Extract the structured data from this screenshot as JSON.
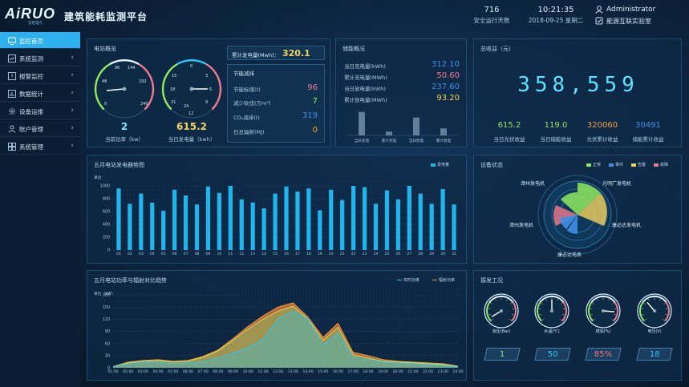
{
  "colors": {
    "accent": "#2fb0ee",
    "cyan": "#29c8f2",
    "yellow": "#f3d35c",
    "green": "#8fea5f",
    "orange": "#f2a03c",
    "red": "#e8596b",
    "blue": "#3f8fe6",
    "pink": "#f07a8c"
  },
  "header": {
    "logo_text": "AiRUO",
    "logo_sub": "艾若电气",
    "title": "建筑能耗监测平台",
    "safe_days_value": "716",
    "safe_days_label": "安全运行天数",
    "time": "10:21:35",
    "date": "2018-09-25 星期二",
    "user_name": "Administrator",
    "company": "能源互联实验室",
    "icons": {
      "user": "user-icon",
      "badge": "shield-check-icon"
    }
  },
  "sidebar": {
    "items": [
      {
        "label": "监控首页",
        "icon": "monitor-icon",
        "active": true
      },
      {
        "label": "系统监测",
        "icon": "chart-icon"
      },
      {
        "label": "报警监控",
        "icon": "alarm-icon"
      },
      {
        "label": "数据统计",
        "icon": "statistics-icon"
      },
      {
        "label": "设备运维",
        "icon": "gear-icon"
      },
      {
        "label": "账户管理",
        "icon": "person-icon"
      },
      {
        "label": "系统管理",
        "icon": "grid-icon"
      }
    ]
  },
  "station": {
    "title": "电站概览",
    "power_value": "2",
    "power_label": "当前功率（kw）",
    "energy_value": "615.2",
    "energy_label": "当日发电量（kwh）",
    "gauge1": {
      "ticks": [
        "0",
        "48",
        "96",
        "144",
        "192",
        "240"
      ],
      "value": 2,
      "max": 240
    },
    "gauge2": {
      "ticks": [
        "0",
        "3",
        "6",
        "9",
        "12",
        "15",
        "18",
        "21",
        "24"
      ],
      "value": 615.2
    },
    "cumulative_label": "累计发电量(Mwh)：",
    "cumulative_value": "320.1",
    "saving_title": "节能减排",
    "saving_rows": [
      {
        "label": "节能标煤(t)",
        "value": "96",
        "color": "#f07a8c"
      },
      {
        "label": "减少砍伐(万m³)",
        "value": "7",
        "color": "#8fea5f"
      },
      {
        "label": "CO₂减排(t)",
        "value": "319",
        "color": "#3f8fe6"
      },
      {
        "label": "日总辐射(MJ)",
        "value": "0",
        "color": "#f2a03c"
      }
    ]
  },
  "storage": {
    "title": "储能概况",
    "rows": [
      {
        "label": "当日充电量(kWh)",
        "value": "312.10",
        "color": "#3f8fe6"
      },
      {
        "label": "累计充电量(MWh)",
        "value": "50.60",
        "color": "#f07a8c"
      },
      {
        "label": "当日放电量(kWh)",
        "value": "237.60",
        "color": "#3f8fe6"
      },
      {
        "label": "累计放电量(MWh)",
        "value": "93.20",
        "color": "#f3d35c"
      }
    ],
    "bars": [
      {
        "label": "当日充电",
        "value": 312.1
      },
      {
        "label": "累计充电",
        "value": 50.6
      },
      {
        "label": "当日放电",
        "value": 237.6
      },
      {
        "label": "累计放电",
        "value": 93.2
      }
    ]
  },
  "income": {
    "title": "总收益（元）",
    "total": "358,559",
    "items": [
      {
        "value": "615.2",
        "label": "当日光伏收益",
        "color": "#8fea5f"
      },
      {
        "value": "119.0",
        "label": "当日储能收益",
        "color": "#8fea5f"
      },
      {
        "value": "320060",
        "label": "光伏累计收益",
        "color": "#f2a03c"
      },
      {
        "value": "30491",
        "label": "储能累计收益",
        "color": "#3f8fe6"
      }
    ]
  },
  "monthly": {
    "title": "五月电站发电器势图",
    "unit": "单位",
    "legend": "发电量"
  },
  "device": {
    "title": "设备状态",
    "legend": [
      {
        "label": "正常",
        "color": "#8fea5f"
      },
      {
        "label": "事件",
        "color": "#3f8fe6"
      },
      {
        "label": "告警",
        "color": "#f3d35c"
      },
      {
        "label": "故障",
        "color": "#f07a8c"
      }
    ],
    "labels": [
      "漳州发电机",
      "光明广发电机",
      "漳州发电机",
      "康必达发电机",
      "康必达电表"
    ]
  },
  "trend": {
    "title": "五月电站功率与辐射对比趋势",
    "unit": "单位（kW）",
    "legend": [
      "实时功率",
      "辐射功率"
    ]
  },
  "conditions": {
    "title": "振发工况",
    "gauges": [
      {
        "label": "液压(Bar)",
        "value": "1",
        "color": "#8fea5f",
        "fraction": 0.05
      },
      {
        "label": "水温(℃)",
        "value": "50",
        "color": "#29c8f2",
        "fraction": 0.5
      },
      {
        "label": "燃油(%)",
        "value": "85%",
        "color": "#f07a8c",
        "fraction": 0.85
      },
      {
        "label": "电压(V)",
        "value": "18",
        "color": "#29c8f2",
        "fraction": 0.35
      }
    ]
  },
  "chart_data": [
    {
      "type": "bar",
      "title": "五月电站发电器势图",
      "ylabel": "单位",
      "legend": [
        "发电量"
      ],
      "ylim": [
        0,
        1000
      ],
      "yticks": [
        "1000",
        "800",
        "600",
        "400",
        "200",
        "0"
      ],
      "categories": [
        "01",
        "02",
        "03",
        "04",
        "05",
        "06",
        "07",
        "08",
        "09",
        "10",
        "11",
        "12",
        "13",
        "14",
        "15",
        "16",
        "17",
        "18",
        "19",
        "20",
        "21",
        "22",
        "23",
        "24",
        "25",
        "26",
        "27",
        "28",
        "29",
        "30",
        "31"
      ],
      "values": [
        960,
        720,
        880,
        740,
        610,
        940,
        850,
        710,
        990,
        890,
        1000,
        790,
        740,
        650,
        880,
        990,
        910,
        960,
        620,
        940,
        780,
        1000,
        980,
        720,
        930,
        790,
        1000,
        880,
        720,
        950,
        710
      ]
    },
    {
      "type": "area",
      "title": "五月电站功率与辐射对比趋势",
      "ylabel": "单位（kW）",
      "ylim": [
        0,
        180
      ],
      "yticks": [
        "180",
        "150",
        "120",
        "90",
        "60",
        "30",
        "0"
      ],
      "x": [
        "01:00",
        "02:00",
        "03:00",
        "04:00",
        "05:00",
        "06:00",
        "07:00",
        "08:00",
        "09:00",
        "10:00",
        "11:00",
        "12:00",
        "13:00",
        "14:00",
        "15:00",
        "16:00",
        "17:00",
        "18:00",
        "19:00",
        "20:00",
        "21:00",
        "22:00",
        "23:00",
        "24:00"
      ],
      "series": [
        {
          "name": "实时功率",
          "values": [
            2,
            10,
            14,
            14,
            10,
            12,
            15,
            24,
            36,
            50,
            70,
            120,
            140,
            120,
            55,
            85,
            25,
            20,
            14,
            12,
            10,
            8,
            6,
            2
          ]
        },
        {
          "name": "辐射功率",
          "values": [
            3,
            14,
            18,
            20,
            16,
            18,
            28,
            44,
            72,
            102,
            128,
            150,
            160,
            125,
            75,
            110,
            38,
            30,
            20,
            16,
            14,
            12,
            10,
            4
          ]
        },
        {
          "name": "",
          "values": [
            2,
            12,
            16,
            18,
            14,
            16,
            26,
            42,
            68,
            96,
            120,
            140,
            152,
            120,
            68,
            100,
            32,
            24,
            16,
            14,
            12,
            10,
            8,
            3
          ]
        }
      ]
    }
  ]
}
